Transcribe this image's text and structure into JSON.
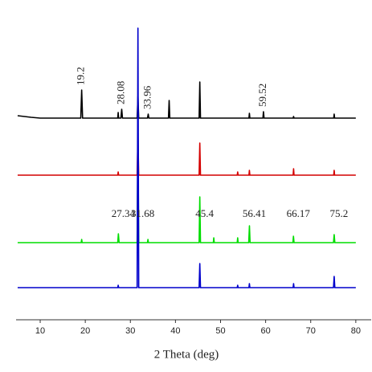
{
  "chart_data": {
    "type": "line",
    "x_label": "2 Theta (deg)",
    "xlim": [
      4.65,
      82.7
    ],
    "xticks": [
      10,
      20,
      30,
      40,
      50,
      60,
      70,
      80
    ],
    "ylim": [
      0,
      398
    ],
    "series": [
      {
        "color": "#000000",
        "x": [
          5,
          8,
          10,
          19.0,
          19.2,
          19.4,
          27.2,
          27.3,
          27.4,
          27.9,
          28.08,
          28.25,
          31.5,
          31.68,
          31.85,
          33.8,
          33.96,
          34.1,
          38.45,
          38.6,
          38.75,
          45.25,
          45.4,
          45.55,
          56.3,
          56.4,
          56.5,
          59.4,
          59.52,
          59.65,
          66.1,
          66.2,
          66.3,
          75.1,
          75.2,
          75.3,
          80
        ],
        "values": [
          254,
          252,
          251,
          251,
          286,
          251,
          251,
          258,
          251,
          251,
          262,
          251,
          251,
          278,
          251,
          251,
          256,
          251,
          251,
          273,
          251,
          251,
          296,
          251,
          251,
          257,
          251,
          251,
          259,
          251,
          251,
          253,
          251,
          251,
          256,
          251,
          251
        ]
      },
      {
        "color": "#d40000",
        "x": [
          5,
          27.2,
          27.3,
          27.4,
          31.5,
          31.68,
          31.85,
          45.25,
          45.4,
          45.55,
          53.7,
          53.8,
          53.9,
          56.3,
          56.4,
          56.5,
          66.1,
          66.2,
          66.3,
          75.1,
          75.2,
          75.3,
          80
        ],
        "values": [
          180,
          180,
          184,
          180,
          180,
          228,
          180,
          180,
          220,
          180,
          180,
          184,
          180,
          180,
          186,
          180,
          180,
          188,
          180,
          180,
          186,
          180,
          180
        ]
      },
      {
        "color": "#00dd00",
        "x": [
          5,
          19.1,
          19.2,
          19.3,
          27.2,
          27.34,
          27.5,
          31.5,
          31.68,
          31.85,
          33.8,
          33.9,
          34.0,
          45.25,
          45.4,
          45.55,
          48.4,
          48.5,
          48.6,
          53.7,
          53.8,
          53.9,
          56.25,
          56.41,
          56.55,
          66.05,
          66.17,
          66.3,
          75.05,
          75.2,
          75.35,
          80
        ],
        "values": [
          96,
          96,
          100,
          96,
          96,
          107,
          96,
          96,
          228,
          96,
          96,
          100,
          96,
          96,
          153,
          96,
          96,
          102,
          96,
          96,
          102,
          96,
          96,
          117,
          96,
          96,
          104,
          96,
          96,
          106,
          96,
          96
        ]
      },
      {
        "color": "#0000cc",
        "x": [
          5,
          27.2,
          27.3,
          27.4,
          31.5,
          31.68,
          31.85,
          45.25,
          45.4,
          45.55,
          53.7,
          53.8,
          53.9,
          56.3,
          56.4,
          56.5,
          66.1,
          66.2,
          66.3,
          75.05,
          75.2,
          75.35,
          80
        ],
        "values": [
          40,
          40,
          43,
          40,
          40,
          363,
          40,
          40,
          70,
          40,
          40,
          43,
          40,
          40,
          45,
          40,
          40,
          45,
          40,
          40,
          54,
          40,
          40
        ]
      }
    ],
    "annotations": [
      {
        "text": "19.2",
        "x": 19.2,
        "series": 0,
        "rotate": -90
      },
      {
        "text": "28.08",
        "x": 28.08,
        "series": 0,
        "rotate": -90
      },
      {
        "text": "33.96",
        "x": 33.96,
        "series": 0,
        "rotate": -90
      },
      {
        "text": "59.52",
        "x": 59.52,
        "series": 0,
        "rotate": -90
      },
      {
        "text": "27.34",
        "x": 27.34,
        "series": 2,
        "rotate": 0
      },
      {
        "text": "31.68",
        "x": 31.68,
        "series": 2,
        "rotate": 0
      },
      {
        "text": "45.4",
        "x": 45.4,
        "series": 2,
        "rotate": 0
      },
      {
        "text": "56.41",
        "x": 56.41,
        "series": 2,
        "rotate": 0
      },
      {
        "text": "66.17",
        "x": 66.17,
        "series": 2,
        "rotate": 0
      },
      {
        "text": "75.2",
        "x": 75.2,
        "series": 2,
        "rotate": 0
      }
    ]
  }
}
